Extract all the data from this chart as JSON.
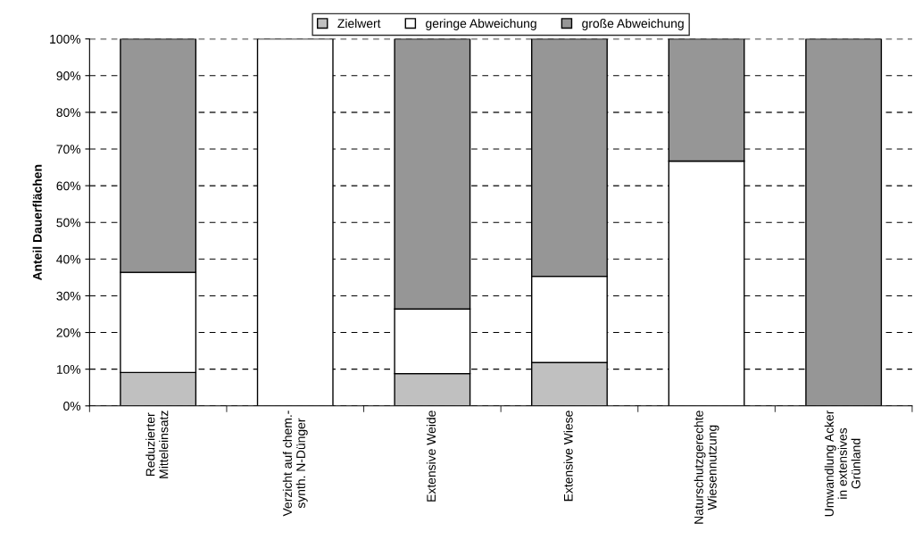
{
  "chart_data": {
    "type": "bar",
    "stacked": true,
    "ylabel": "Anteil Dauerflächen",
    "categories": [
      "Reduzierter\nMitteleinsatz",
      "Verzicht auf chem.-\nsynth. N-Dünger",
      "Extensive Weide",
      "Extensive Wiese",
      "Naturschutzgerechte\nWiesennutzung",
      "Umwandlung Acker\nin extensives\nGrünland"
    ],
    "series": [
      {
        "name": "Zielwert",
        "color": "#c0c0c0",
        "values": [
          9.1,
          0,
          8.8,
          11.8,
          0,
          0
        ]
      },
      {
        "name": "geringe Abweichung",
        "color": "#ffffff",
        "values": [
          27.3,
          100,
          17.6,
          23.5,
          66.7,
          0
        ]
      },
      {
        "name": "große Abweichung",
        "color": "#969696",
        "values": [
          63.6,
          0,
          73.6,
          64.7,
          33.3,
          100
        ]
      }
    ],
    "ylim": [
      0,
      100
    ],
    "yticks": [
      {
        "value": 0,
        "label": "0%"
      },
      {
        "value": 10,
        "label": "10%"
      },
      {
        "value": 20,
        "label": "20%"
      },
      {
        "value": 30,
        "label": "30%"
      },
      {
        "value": 40,
        "label": "40%"
      },
      {
        "value": 50,
        "label": "50%"
      },
      {
        "value": 60,
        "label": "60%"
      },
      {
        "value": 70,
        "label": "70%"
      },
      {
        "value": 80,
        "label": "80%"
      },
      {
        "value": 90,
        "label": "90%"
      },
      {
        "value": 100,
        "label": "100%"
      }
    ],
    "grid": "y",
    "legend": "top"
  }
}
